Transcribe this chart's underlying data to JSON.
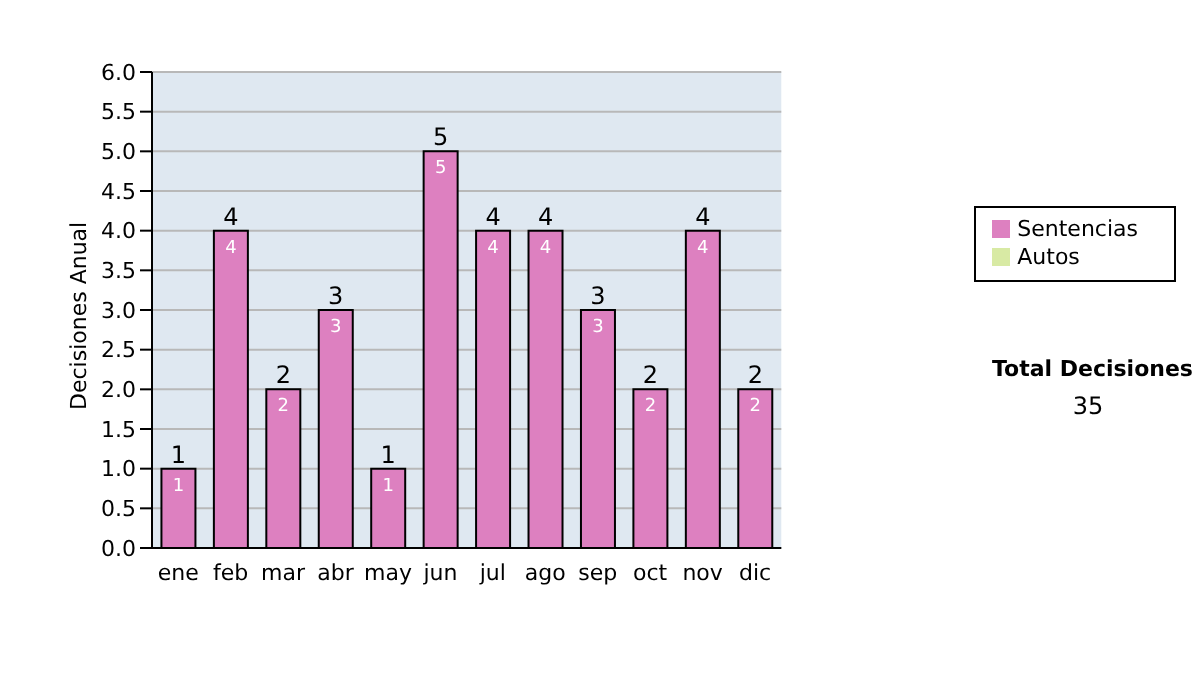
{
  "chart_data": {
    "type": "bar",
    "ylabel": "Decisiones Anual",
    "categories": [
      "ene",
      "feb",
      "mar",
      "abr",
      "may",
      "jun",
      "jul",
      "ago",
      "sep",
      "oct",
      "nov",
      "dic"
    ],
    "series": [
      {
        "name": "Sentencias",
        "color": "#dd80c0",
        "values": [
          1,
          4,
          2,
          3,
          1,
          5,
          4,
          4,
          3,
          2,
          4,
          2
        ],
        "value_labels": [
          "1",
          "4",
          "2",
          "3",
          "1",
          "5",
          "4",
          "4",
          "3",
          "2",
          "4",
          "2"
        ]
      },
      {
        "name": "Autos",
        "color": "#d8eaa4",
        "values": [
          0,
          0,
          0,
          0,
          0,
          0,
          0,
          0,
          0,
          0,
          0,
          0
        ]
      }
    ],
    "stacked": true,
    "totals": [
      "1",
      "4",
      "2",
      "3",
      "1",
      "5",
      "4",
      "4",
      "3",
      "2",
      "4",
      "2"
    ],
    "ylim": [
      0,
      6
    ],
    "yticks": [
      {
        "value": 0,
        "label": "0.0"
      },
      0.5,
      {
        "value": 1,
        "label": "1.0"
      },
      1.5,
      {
        "value": 2,
        "label": "2.0"
      },
      2.5,
      {
        "value": 3,
        "label": "3.0"
      },
      3.5,
      {
        "value": 4,
        "label": "4.0"
      },
      4.5,
      {
        "value": 5,
        "label": "5.0"
      },
      5.5,
      {
        "value": 6,
        "label": "6.0"
      }
    ],
    "grid": "y",
    "legend": "right",
    "annotations": [
      "Total Decisiones",
      "35"
    ]
  }
}
